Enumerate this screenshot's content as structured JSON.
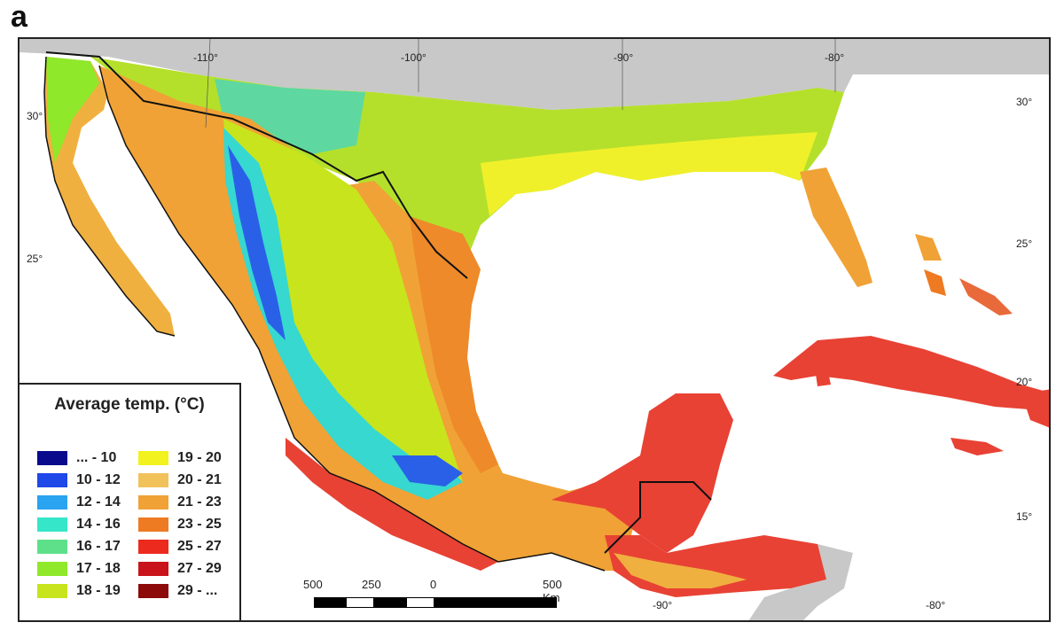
{
  "panel_label": "a",
  "longitude_labels_top": [
    "-110°",
    "-100°",
    "-90°",
    "-80°"
  ],
  "longitude_labels_bottom": [
    "-90°",
    "-80°"
  ],
  "latitude_labels_left": [
    "30°",
    "25°"
  ],
  "latitude_labels_right": [
    "30°",
    "25°",
    "20°",
    "15°"
  ],
  "legend": {
    "title": "Average temp. (°C)",
    "items": [
      {
        "label": "... - 10",
        "color": "#0a0a8c"
      },
      {
        "label": "10 - 12",
        "color": "#1f48e8"
      },
      {
        "label": "12 - 14",
        "color": "#2aa3f0"
      },
      {
        "label": "14 - 16",
        "color": "#36e6c8"
      },
      {
        "label": "16 - 17",
        "color": "#5ee08a"
      },
      {
        "label": "17 - 18",
        "color": "#8fe82a"
      },
      {
        "label": "18 - 19",
        "color": "#c8e41c"
      },
      {
        "label": "19 - 20",
        "color": "#f2f21e"
      },
      {
        "label": "20 - 21",
        "color": "#f2c25a"
      },
      {
        "label": "21 - 23",
        "color": "#f0a236"
      },
      {
        "label": "23 - 25",
        "color": "#ee7a22"
      },
      {
        "label": "25 - 27",
        "color": "#ec2a1e"
      },
      {
        "label": "27 - 29",
        "color": "#c8141a"
      },
      {
        "label": "29 - ...",
        "color": "#8c0a0a"
      }
    ]
  },
  "scale_bar": {
    "labels": [
      "500",
      "250",
      "0",
      "500 Km"
    ]
  },
  "colors": {
    "land_outside": "#c8c8c8",
    "ocean": "#ffffff",
    "border": "#111111"
  }
}
